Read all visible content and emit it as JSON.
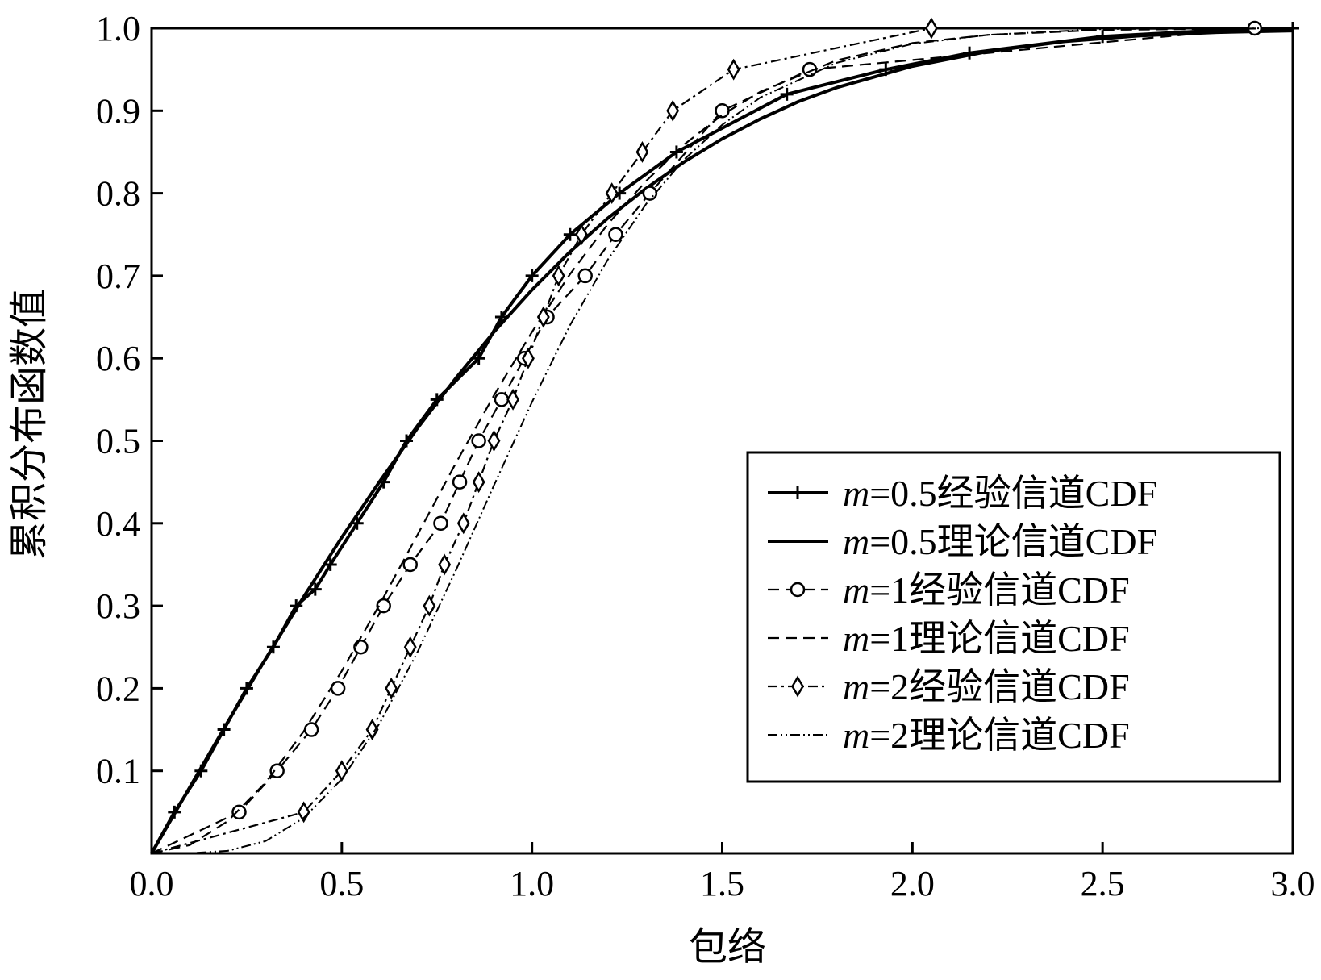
{
  "chart_data": {
    "type": "line",
    "title": "",
    "xlabel": "包络",
    "ylabel": "累积分布函数值",
    "xlim": [
      0,
      3
    ],
    "ylim": [
      0,
      1
    ],
    "xticks": [
      0,
      0.5,
      1,
      1.5,
      2,
      2.5,
      3
    ],
    "xtick_labels": [
      "0.0",
      "0.5",
      "1.0",
      "1.5",
      "2.0",
      "2.5",
      "3.0"
    ],
    "yticks": [
      0.1,
      0.2,
      0.3,
      0.4,
      0.5,
      0.6,
      0.7,
      0.8,
      0.9,
      1.0
    ],
    "ytick_labels": [
      "0.1",
      "0.2",
      "0.3",
      "0.4",
      "0.5",
      "0.6",
      "0.7",
      "0.8",
      "0.9",
      "1.0"
    ],
    "grid": false,
    "legend_position": "center-right",
    "series": [
      {
        "name": "m=0.5经验信道CDF",
        "legend_label": {
          "italic": "m",
          "rest": "=0.5经验信道CDF"
        },
        "line_style": "solid-thick",
        "marker": "plus",
        "x": [
          0,
          0.06,
          0.13,
          0.19,
          0.25,
          0.32,
          0.38,
          0.43,
          0.47,
          0.54,
          0.61,
          0.67,
          0.75,
          0.86,
          0.92,
          1.0,
          1.1,
          1.23,
          1.38,
          1.67,
          1.93,
          2.15,
          2.5,
          2.9,
          3.0
        ],
        "y": [
          0,
          0.05,
          0.1,
          0.15,
          0.2,
          0.25,
          0.3,
          0.32,
          0.35,
          0.4,
          0.45,
          0.5,
          0.55,
          0.6,
          0.65,
          0.7,
          0.75,
          0.8,
          0.85,
          0.92,
          0.95,
          0.97,
          0.99,
          1.0,
          1.0
        ]
      },
      {
        "name": "m=0.5理论信道CDF",
        "legend_label": {
          "italic": "m",
          "rest": "=0.5理论信道CDF"
        },
        "line_style": "solid-thick",
        "marker": "none",
        "x": [
          0,
          0.1,
          0.2,
          0.3,
          0.4,
          0.5,
          0.6,
          0.7,
          0.8,
          0.9,
          1.0,
          1.1,
          1.2,
          1.3,
          1.4,
          1.5,
          1.6,
          1.7,
          1.8,
          2.0,
          2.2,
          2.4,
          2.6,
          2.8,
          3.0
        ],
        "y": [
          0,
          0.08,
          0.159,
          0.236,
          0.311,
          0.383,
          0.451,
          0.516,
          0.576,
          0.632,
          0.683,
          0.729,
          0.77,
          0.806,
          0.838,
          0.866,
          0.89,
          0.911,
          0.928,
          0.954,
          0.972,
          0.984,
          0.991,
          0.995,
          0.997
        ]
      },
      {
        "name": "m=1经验信道CDF",
        "legend_label": {
          "italic": "m",
          "rest": "=1经验信道CDF"
        },
        "line_style": "dashed",
        "marker": "circle",
        "x": [
          0,
          0.23,
          0.33,
          0.42,
          0.49,
          0.55,
          0.61,
          0.68,
          0.76,
          0.81,
          0.86,
          0.92,
          0.98,
          1.04,
          1.14,
          1.22,
          1.31,
          1.5,
          1.73,
          2.9
        ],
        "y": [
          0,
          0.05,
          0.1,
          0.15,
          0.2,
          0.25,
          0.3,
          0.35,
          0.4,
          0.45,
          0.5,
          0.55,
          0.6,
          0.65,
          0.7,
          0.75,
          0.8,
          0.9,
          0.95,
          1.0
        ]
      },
      {
        "name": "m=1理论信道CDF",
        "legend_label": {
          "italic": "m",
          "rest": "=1理论信道CDF"
        },
        "line_style": "dashed",
        "marker": "none",
        "x": [
          0,
          0.1,
          0.2,
          0.3,
          0.4,
          0.5,
          0.6,
          0.7,
          0.8,
          0.9,
          1.0,
          1.1,
          1.2,
          1.3,
          1.4,
          1.5,
          1.6,
          1.8,
          2.0,
          2.2,
          2.5,
          3.0
        ],
        "y": [
          0,
          0.01,
          0.039,
          0.086,
          0.148,
          0.221,
          0.302,
          0.387,
          0.473,
          0.555,
          0.632,
          0.702,
          0.763,
          0.815,
          0.859,
          0.895,
          0.923,
          0.961,
          0.982,
          0.992,
          0.998,
          1.0
        ]
      },
      {
        "name": "m=2经验信道CDF",
        "legend_label": {
          "italic": "m",
          "rest": "=2经验信道CDF"
        },
        "line_style": "dash-dot",
        "marker": "diamond",
        "x": [
          0,
          0.4,
          0.5,
          0.58,
          0.63,
          0.68,
          0.73,
          0.77,
          0.82,
          0.86,
          0.9,
          0.95,
          0.99,
          1.03,
          1.07,
          1.13,
          1.21,
          1.29,
          1.37,
          1.53,
          2.05
        ],
        "y": [
          0,
          0.05,
          0.1,
          0.15,
          0.2,
          0.25,
          0.3,
          0.35,
          0.4,
          0.45,
          0.5,
          0.55,
          0.6,
          0.65,
          0.7,
          0.75,
          0.8,
          0.85,
          0.9,
          0.95,
          1.0
        ]
      },
      {
        "name": "m=2理论信道CDF",
        "legend_label": {
          "italic": "m",
          "rest": "=2理论信道CDF"
        },
        "line_style": "dash-dot-dot",
        "marker": "none",
        "x": [
          0,
          0.1,
          0.2,
          0.3,
          0.4,
          0.5,
          0.6,
          0.7,
          0.8,
          0.9,
          1.0,
          1.1,
          1.2,
          1.3,
          1.4,
          1.5,
          1.6,
          1.8,
          2.0,
          2.2,
          2.5,
          3.0
        ],
        "y": [
          0,
          0.0002,
          0.003,
          0.015,
          0.043,
          0.09,
          0.158,
          0.245,
          0.343,
          0.446,
          0.547,
          0.64,
          0.72,
          0.787,
          0.841,
          0.883,
          0.916,
          0.958,
          0.981,
          0.992,
          0.999,
          1.0
        ]
      }
    ]
  }
}
